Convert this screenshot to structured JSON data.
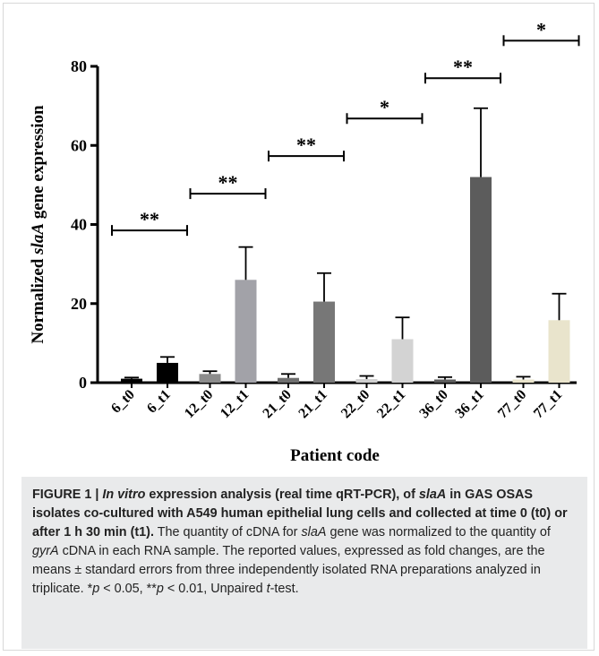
{
  "chart_data": {
    "type": "bar",
    "categories": [
      "6_t0",
      "6_t1",
      "12_t0",
      "12_t1",
      "21_t0",
      "21_t1",
      "22_t0",
      "22_t1",
      "36_t0",
      "36_t1",
      "77_t0",
      "77_t1"
    ],
    "values": [
      1.0,
      5.0,
      2.2,
      26.0,
      1.2,
      20.5,
      0.9,
      11.0,
      0.8,
      52.0,
      0.8,
      15.8
    ],
    "errors": [
      0.3,
      1.5,
      0.7,
      8.3,
      1.0,
      7.2,
      0.8,
      5.5,
      0.6,
      17.4,
      0.7,
      6.7
    ],
    "bar_colors": [
      "#000000",
      "#000000",
      "#8c8c8c",
      "#a2a2a8",
      "#6f6f6f",
      "#777777",
      "#cfcfcf",
      "#d3d3d3",
      "#5c5c5c",
      "#5c5c5c",
      "#e9e4cc",
      "#e9e4cc"
    ],
    "ylabel_prefix": "Normalized ",
    "ylabel_italic": "slaA",
    "ylabel_suffix": " gene expression",
    "xlabel": "Patient code",
    "ylim": [
      0,
      80
    ],
    "yticks": [
      0,
      20,
      40,
      60,
      80
    ],
    "grid": false,
    "significance": [
      {
        "pair": [
          0,
          1
        ],
        "label": "**",
        "y": 38.5
      },
      {
        "pair": [
          2,
          3
        ],
        "label": "**",
        "y": 47.8
      },
      {
        "pair": [
          4,
          5
        ],
        "label": "**",
        "y": 57.3
      },
      {
        "pair": [
          6,
          7
        ],
        "label": "*",
        "y": 66.8
      },
      {
        "pair": [
          8,
          9
        ],
        "label": "**",
        "y": 77.0
      },
      {
        "pair": [
          10,
          11
        ],
        "label": "*",
        "y": 86.5
      }
    ]
  },
  "caption": {
    "figure_label": "FIGURE 1 | ",
    "title_italic_1": "In vitro",
    "title_part_1": " expression analysis (real time qRT-PCR), of ",
    "title_italic_2": "slaA",
    "title_part_2": " in GAS OSAS isolates co-cultured with A549 human epithelial lung cells and collected at time 0 (t0) or after 1 h 30 min (t1).",
    "body_1": " The quantity of cDNA for ",
    "body_italic_1": "slaA",
    "body_2": " gene was normalized to the quantity of ",
    "body_italic_2": "gyrA",
    "body_3": " cDNA in each RNA sample. The reported values, expressed as fold changes, are the means ± standard errors from three independently isolated RNA preparations analyzed in triplicate. *",
    "body_italic_3": "p",
    "body_4": " < 0.05, **",
    "body_italic_4": "p",
    "body_5": " < 0.01, Unpaired ",
    "body_italic_5": "t",
    "body_6": "-test."
  }
}
